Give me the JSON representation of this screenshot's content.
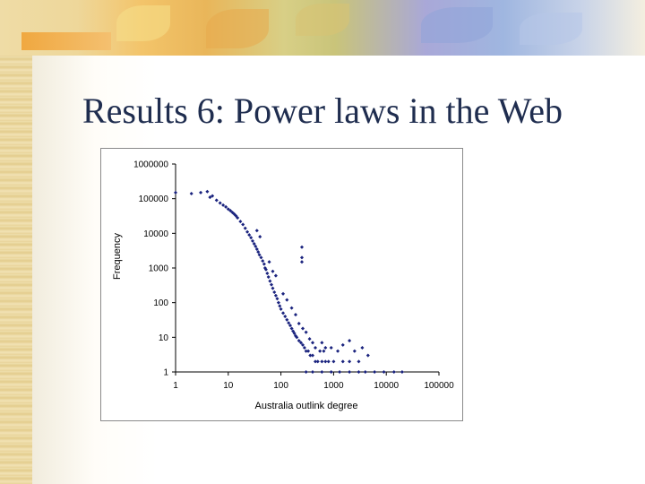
{
  "slide": {
    "title": "Results 6: Power laws in the Web"
  },
  "chart_data": {
    "type": "scatter",
    "xlabel": "Australia outlink degree",
    "ylabel": "Frequency",
    "xscale": "log",
    "yscale": "log",
    "xlim": [
      1,
      100000
    ],
    "ylim": [
      1,
      1000000
    ],
    "x_ticks": [
      "1",
      "10",
      "100",
      "1000",
      "10000",
      "100000"
    ],
    "y_ticks": [
      "1",
      "10",
      "100",
      "1000",
      "10000",
      "100000",
      "1000000"
    ],
    "grid": false,
    "marker_color": "#1a237e",
    "series": [
      {
        "points": [
          [
            1,
            150000
          ],
          [
            2,
            140000
          ],
          [
            3,
            150000
          ],
          [
            4,
            160000
          ],
          [
            4.5,
            110000
          ],
          [
            5,
            120000
          ],
          [
            6,
            90000
          ],
          [
            7,
            75000
          ],
          [
            8,
            65000
          ],
          [
            9,
            58000
          ],
          [
            10,
            50000
          ],
          [
            11,
            45000
          ],
          [
            12,
            40000
          ],
          [
            13,
            36000
          ],
          [
            14,
            32000
          ],
          [
            15,
            28000
          ],
          [
            17,
            22000
          ],
          [
            19,
            18000
          ],
          [
            21,
            14000
          ],
          [
            23,
            11000
          ],
          [
            25,
            9000
          ],
          [
            27,
            7500
          ],
          [
            29,
            6000
          ],
          [
            31,
            5000
          ],
          [
            33,
            4200
          ],
          [
            35,
            3500
          ],
          [
            37,
            2900
          ],
          [
            39,
            2400
          ],
          [
            42,
            2000
          ],
          [
            45,
            1600
          ],
          [
            48,
            1300
          ],
          [
            50,
            1000
          ],
          [
            52,
            900
          ],
          [
            55,
            700
          ],
          [
            58,
            550
          ],
          [
            62,
            420
          ],
          [
            66,
            330
          ],
          [
            70,
            260
          ],
          [
            75,
            200
          ],
          [
            80,
            160
          ],
          [
            85,
            130
          ],
          [
            90,
            100
          ],
          [
            95,
            80
          ],
          [
            100,
            65
          ],
          [
            110,
            50
          ],
          [
            120,
            40
          ],
          [
            130,
            32
          ],
          [
            140,
            26
          ],
          [
            150,
            22
          ],
          [
            160,
            18
          ],
          [
            170,
            15
          ],
          [
            180,
            13
          ],
          [
            190,
            11
          ],
          [
            200,
            10
          ],
          [
            220,
            8
          ],
          [
            240,
            7
          ],
          [
            260,
            6
          ],
          [
            280,
            5
          ],
          [
            300,
            4
          ],
          [
            330,
            4
          ],
          [
            360,
            3
          ],
          [
            400,
            3
          ],
          [
            450,
            2
          ],
          [
            500,
            2
          ],
          [
            600,
            2
          ],
          [
            700,
            2
          ],
          [
            800,
            2
          ],
          [
            1000,
            2
          ],
          [
            1500,
            2
          ],
          [
            2000,
            2
          ],
          [
            3000,
            2
          ],
          [
            300,
            1
          ],
          [
            400,
            1
          ],
          [
            600,
            1
          ],
          [
            900,
            1
          ],
          [
            1300,
            1
          ],
          [
            2000,
            1
          ],
          [
            3000,
            1
          ],
          [
            4000,
            1
          ],
          [
            6000,
            1
          ],
          [
            9000,
            1
          ],
          [
            14000,
            1
          ],
          [
            20000,
            1
          ],
          [
            40,
            8000
          ],
          [
            35,
            12000
          ],
          [
            60,
            1500
          ],
          [
            70,
            800
          ],
          [
            80,
            600
          ],
          [
            110,
            180
          ],
          [
            130,
            120
          ],
          [
            160,
            70
          ],
          [
            190,
            45
          ],
          [
            250,
            4000
          ],
          [
            250,
            2000
          ],
          [
            250,
            1500
          ],
          [
            220,
            25
          ],
          [
            260,
            18
          ],
          [
            300,
            14
          ],
          [
            350,
            9
          ],
          [
            400,
            7
          ],
          [
            450,
            5
          ],
          [
            550,
            4
          ],
          [
            650,
            4
          ],
          [
            700,
            5
          ],
          [
            900,
            5
          ],
          [
            1200,
            4
          ],
          [
            1500,
            6
          ],
          [
            2500,
            4
          ],
          [
            3500,
            5
          ],
          [
            4500,
            3
          ],
          [
            600,
            7
          ],
          [
            2000,
            8
          ]
        ]
      }
    ]
  }
}
